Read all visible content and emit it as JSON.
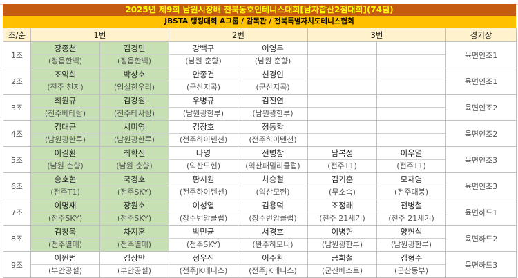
{
  "title": "2025년 제9회 남원시장배 전북동호인테니스대회[남자합산2점대회](74팀)",
  "subtitle": "JBSTA 랭킹대회 A그룹 / 감독관 / 전북특별자치도테니스협회",
  "headers": {
    "group": "조/순",
    "first": "1번",
    "second": "2번",
    "third": "3번",
    "venue": "경기장"
  },
  "colors": {
    "title_bg": "#C55A11",
    "title_text": "#FFFF00",
    "subtitle_bg": "#FFC000",
    "header_bg": "#FFF2CC",
    "first_team_bg": "#C6E0B4"
  },
  "rows": [
    {
      "group": "1조",
      "venue": "육면인조1",
      "teams": [
        [
          {
            "name": "장종천",
            "club": "(정읍한백)"
          },
          {
            "name": "김경민",
            "club": "(정읍한백)"
          }
        ],
        [
          {
            "name": "강백구",
            "club": "(남원 춘향)"
          },
          {
            "name": "이영두",
            "club": "(남원 춘향)"
          }
        ],
        [
          {
            "name": "",
            "club": ""
          },
          {
            "name": "",
            "club": ""
          }
        ]
      ]
    },
    {
      "group": "2조",
      "venue": "육면인조1",
      "teams": [
        [
          {
            "name": "조익희",
            "club": "(전주 천지)"
          },
          {
            "name": "박상호",
            "club": "(임실한우리)"
          }
        ],
        [
          {
            "name": "안종건",
            "club": "(군산지곡)"
          },
          {
            "name": "신경인",
            "club": "(군산지곡)"
          }
        ],
        [
          {
            "name": "",
            "club": ""
          },
          {
            "name": "",
            "club": ""
          }
        ]
      ]
    },
    {
      "group": "3조",
      "venue": "육면인조2",
      "teams": [
        [
          {
            "name": "최원규",
            "club": "(전주베테랑)"
          },
          {
            "name": "김강원",
            "club": "(전주테사랑)"
          }
        ],
        [
          {
            "name": "우병규",
            "club": "(남원광한루)"
          },
          {
            "name": "김진연",
            "club": "(남원광한루)"
          }
        ],
        [
          {
            "name": "",
            "club": ""
          },
          {
            "name": "",
            "club": ""
          }
        ]
      ]
    },
    {
      "group": "4조",
      "venue": "육면인조2",
      "teams": [
        [
          {
            "name": "김대근",
            "club": "(남원광한루)"
          },
          {
            "name": "서미영",
            "club": "(남원광한루)"
          }
        ],
        [
          {
            "name": "김장호",
            "club": "(전주하이텐션)"
          },
          {
            "name": "정동학",
            "club": "(전주하이텐션)"
          }
        ],
        [
          {
            "name": "",
            "club": ""
          },
          {
            "name": "",
            "club": ""
          }
        ]
      ]
    },
    {
      "group": "5조",
      "venue": "육면인조3",
      "teams": [
        [
          {
            "name": "이길환",
            "club": "(남원 춘향)"
          },
          {
            "name": "최학진",
            "club": "(남원 춘향)"
          }
        ],
        [
          {
            "name": "나영",
            "club": "(익산모현)"
          },
          {
            "name": "전병창",
            "club": "(익산패밀리클럽)"
          }
        ],
        [
          {
            "name": "남복성",
            "club": "(전주T1)"
          },
          {
            "name": "이우열",
            "club": "(전주T1)"
          }
        ]
      ]
    },
    {
      "group": "6조",
      "venue": "육면인조3",
      "teams": [
        [
          {
            "name": "송호현",
            "club": "(전주T1)"
          },
          {
            "name": "국경호",
            "club": "(전주SKY)"
          }
        ],
        [
          {
            "name": "황시원",
            "club": "(전주하이텐션)"
          },
          {
            "name": "차승철",
            "club": "(익산모현)"
          }
        ],
        [
          {
            "name": "김기훈",
            "club": "(무소속)"
          },
          {
            "name": "모재영",
            "club": "(전주대붕)"
          }
        ]
      ]
    },
    {
      "group": "7조",
      "venue": "육면하드1",
      "teams": [
        [
          {
            "name": "이명재",
            "club": "(전주SKY)"
          },
          {
            "name": "장원호",
            "club": "(전주SKY)"
          }
        ],
        [
          {
            "name": "이성열",
            "club": "(장수번암클럽)"
          },
          {
            "name": "김용덕",
            "club": "(장수번암클럽)"
          }
        ],
        [
          {
            "name": "조정래",
            "club": "(전주 21세기)"
          },
          {
            "name": "전병철",
            "club": "(전주 21세기)"
          }
        ]
      ]
    },
    {
      "group": "8조",
      "venue": "육면하드2",
      "teams": [
        [
          {
            "name": "김창욱",
            "club": "(전주열매)"
          },
          {
            "name": "차지훈",
            "club": "(전주열매)"
          }
        ],
        [
          {
            "name": "박민균",
            "club": "(전주SKY)"
          },
          {
            "name": "서경호",
            "club": "(완주하모니)"
          }
        ],
        [
          {
            "name": "이병현",
            "club": "(남원광한루)"
          },
          {
            "name": "양현식",
            "club": "(남원광한루)"
          }
        ]
      ]
    },
    {
      "group": "9조",
      "venue": "육면하드3",
      "teams": [
        [
          {
            "name": "이원범",
            "club": "(부안공설)"
          },
          {
            "name": "김상만",
            "club": "(부안공설)"
          }
        ],
        [
          {
            "name": "정우진",
            "club": "(전주JK테니스)"
          },
          {
            "name": "이주환",
            "club": "(전주JK테니스)"
          }
        ],
        [
          {
            "name": "금희철",
            "club": "(군산베스트)"
          },
          {
            "name": "김형수",
            "club": "(군산동부)"
          }
        ]
      ]
    }
  ]
}
